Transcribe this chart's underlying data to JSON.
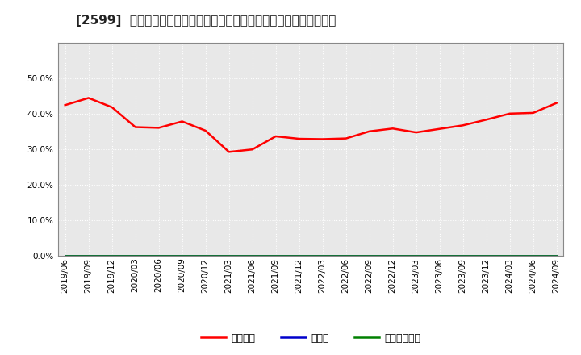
{
  "title": "[2599]  自己資本、のれん、繰延税金資産の総資産に対する比率の推移",
  "background_color": "#ffffff",
  "plot_background_color": "#e8e8e8",
  "grid_color": "#ffffff",
  "x_labels": [
    "2019/06",
    "2019/09",
    "2019/12",
    "2020/03",
    "2020/06",
    "2020/09",
    "2020/12",
    "2021/03",
    "2021/06",
    "2021/09",
    "2021/12",
    "2022/03",
    "2022/06",
    "2022/09",
    "2022/12",
    "2023/03",
    "2023/06",
    "2023/09",
    "2023/12",
    "2024/03",
    "2024/06",
    "2024/09"
  ],
  "equity_ratio": [
    0.424,
    0.444,
    0.418,
    0.362,
    0.36,
    0.378,
    0.352,
    0.292,
    0.299,
    0.336,
    0.329,
    0.328,
    0.33,
    0.35,
    0.358,
    0.347,
    0.357,
    0.367,
    0.383,
    0.4,
    0.402,
    0.43
  ],
  "noren_ratio": [
    0,
    0,
    0,
    0,
    0,
    0,
    0,
    0,
    0,
    0,
    0,
    0,
    0,
    0,
    0,
    0,
    0,
    0,
    0,
    0,
    0,
    0
  ],
  "deferred_tax_ratio": [
    0,
    0,
    0,
    0,
    0,
    0,
    0,
    0,
    0,
    0,
    0,
    0,
    0,
    0,
    0,
    0,
    0,
    0,
    0,
    0,
    0,
    0
  ],
  "equity_color": "#ff0000",
  "noren_color": "#0000cc",
  "deferred_tax_color": "#008000",
  "legend_labels": [
    "自己資本",
    "のれん",
    "繰延税金資産"
  ],
  "ylim": [
    0.0,
    0.6
  ],
  "yticks": [
    0.0,
    0.1,
    0.2,
    0.3,
    0.4,
    0.5
  ],
  "title_fontsize": 11,
  "tick_fontsize": 7.5,
  "legend_fontsize": 9
}
